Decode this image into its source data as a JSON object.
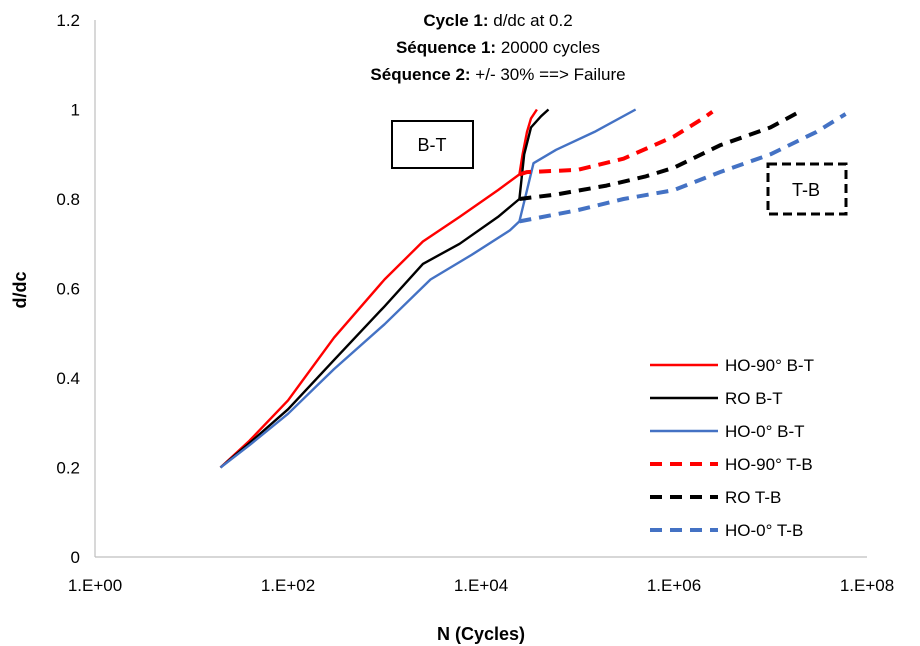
{
  "chart_data": {
    "type": "line",
    "x_scale": "log",
    "xlim": [
      1,
      100000000
    ],
    "ylim": [
      0,
      1.2
    ],
    "xlabel": "N (Cycles)",
    "ylabel": "d/dc",
    "x_ticks": [
      1,
      100,
      10000,
      1000000,
      100000000
    ],
    "x_tick_labels": [
      "1.E+00",
      "1.E+02",
      "1.E+04",
      "1.E+06",
      "1.E+08"
    ],
    "y_ticks": [
      0,
      0.2,
      0.4,
      0.6,
      0.8,
      1,
      1.2
    ],
    "y_tick_labels": [
      "0",
      "0.2",
      "0.4",
      "0.6",
      "0.8",
      "1",
      "1.2"
    ],
    "grid": false,
    "annotation_lines": [
      {
        "bold": "Cycle 1:",
        "text": " d/dc at 0.2"
      },
      {
        "bold": "Séquence 1:",
        "text": " 20000 cycles"
      },
      {
        "bold": "Séquence 2:",
        "text": " +/- 30% ==> Failure"
      }
    ],
    "boxes": [
      {
        "label": "B-T",
        "style": "solid"
      },
      {
        "label": "T-B",
        "style": "dashed"
      }
    ],
    "legend_position": "bottom-right",
    "series": [
      {
        "name": "HO-90° B-T",
        "color": "#ff0000",
        "dash": "solid",
        "points": [
          [
            20,
            0.2
          ],
          [
            40,
            0.26
          ],
          [
            100,
            0.35
          ],
          [
            300,
            0.49
          ],
          [
            1000,
            0.62
          ],
          [
            2500,
            0.705
          ],
          [
            6000,
            0.76
          ],
          [
            15000,
            0.82
          ],
          [
            25000,
            0.855
          ],
          [
            27000,
            0.9
          ],
          [
            30000,
            0.95
          ],
          [
            33000,
            0.98
          ],
          [
            38000,
            1.0
          ]
        ]
      },
      {
        "name": "RO B-T",
        "color": "#000000",
        "dash": "solid",
        "points": [
          [
            20,
            0.2
          ],
          [
            40,
            0.255
          ],
          [
            100,
            0.33
          ],
          [
            300,
            0.44
          ],
          [
            1000,
            0.56
          ],
          [
            2500,
            0.655
          ],
          [
            6000,
            0.7
          ],
          [
            15000,
            0.76
          ],
          [
            22000,
            0.79
          ],
          [
            25000,
            0.8
          ],
          [
            26500,
            0.85
          ],
          [
            28000,
            0.9
          ],
          [
            33000,
            0.96
          ],
          [
            42000,
            0.985
          ],
          [
            50000,
            1.0
          ]
        ]
      },
      {
        "name": "HO-0° B-T",
        "color": "#4472c4",
        "dash": "solid",
        "points": [
          [
            20,
            0.2
          ],
          [
            40,
            0.25
          ],
          [
            100,
            0.32
          ],
          [
            300,
            0.42
          ],
          [
            1000,
            0.52
          ],
          [
            3000,
            0.62
          ],
          [
            8000,
            0.675
          ],
          [
            20000,
            0.73
          ],
          [
            25000,
            0.75
          ],
          [
            30000,
            0.82
          ],
          [
            35000,
            0.88
          ],
          [
            60000,
            0.91
          ],
          [
            150000,
            0.95
          ],
          [
            400000,
            1.0
          ]
        ]
      },
      {
        "name": "HO-90° T-B",
        "color": "#ff0000",
        "dash": "dashed",
        "points": [
          [
            25000,
            0.855
          ],
          [
            30000,
            0.86
          ],
          [
            100000,
            0.865
          ],
          [
            300000,
            0.89
          ],
          [
            1000000,
            0.94
          ],
          [
            2000000,
            0.98
          ],
          [
            2500000,
            0.995
          ]
        ]
      },
      {
        "name": "RO T-B",
        "color": "#000000",
        "dash": "dashed",
        "points": [
          [
            25000,
            0.8
          ],
          [
            60000,
            0.81
          ],
          [
            200000,
            0.83
          ],
          [
            500000,
            0.85
          ],
          [
            1000000,
            0.87
          ],
          [
            3000000,
            0.92
          ],
          [
            10000000,
            0.96
          ],
          [
            20000000,
            0.995
          ]
        ]
      },
      {
        "name": "HO-0° T-B",
        "color": "#4472c4",
        "dash": "dashed",
        "points": [
          [
            25000,
            0.75
          ],
          [
            100000,
            0.775
          ],
          [
            300000,
            0.8
          ],
          [
            1000000,
            0.82
          ],
          [
            3000000,
            0.86
          ],
          [
            10000000,
            0.9
          ],
          [
            30000000,
            0.95
          ],
          [
            60000000,
            0.99
          ]
        ]
      }
    ]
  }
}
